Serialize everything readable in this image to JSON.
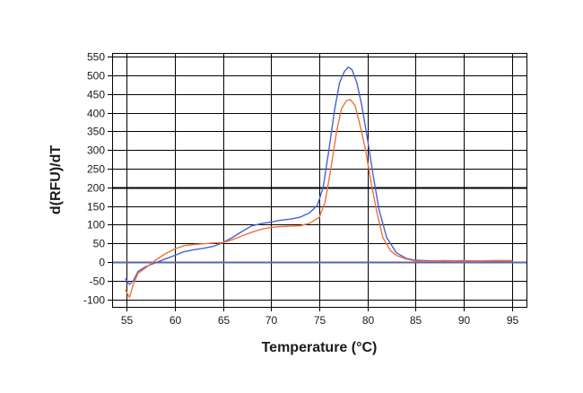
{
  "chart_data": {
    "type": "line",
    "xlabel": "Temperature (°C)",
    "ylabel": "d(RFU)/dT",
    "xlim": [
      53.5,
      96.5
    ],
    "ylim": [
      -120,
      560
    ],
    "x_ticks": [
      55,
      60,
      65,
      70,
      75,
      80,
      85,
      90,
      95
    ],
    "y_ticks": [
      -100,
      -50,
      0,
      50,
      100,
      150,
      200,
      250,
      300,
      350,
      400,
      450,
      500,
      550
    ],
    "highlight_y": [
      0,
      200
    ],
    "grid": true,
    "colors": {
      "blue": "#4a5fd0",
      "orange": "#f0703a",
      "baseline": "#5a64b0"
    },
    "baseline_y": 0,
    "series": [
      {
        "color": "#4a5fd0",
        "x": [
          54.9,
          55.3,
          55.7,
          56.2,
          57,
          58,
          59,
          60,
          61,
          62,
          63,
          64,
          65,
          66,
          67,
          68,
          69,
          70,
          71,
          72,
          73,
          74,
          74.8,
          75.4,
          76,
          76.6,
          77.1,
          77.6,
          78,
          78.4,
          78.9,
          79.4,
          80,
          80.6,
          81.2,
          82,
          83,
          84,
          85,
          86,
          87,
          88,
          89,
          90,
          91,
          92,
          93,
          94,
          95
        ],
        "y": [
          -45,
          -60,
          -50,
          -25,
          -12,
          -2,
          8,
          18,
          28,
          33,
          37,
          42,
          52,
          66,
          82,
          97,
          103,
          107,
          112,
          115,
          120,
          132,
          152,
          200,
          300,
          410,
          480,
          510,
          522,
          515,
          480,
          420,
          330,
          230,
          140,
          65,
          25,
          10,
          5,
          4,
          3,
          4,
          3,
          4,
          3,
          3,
          4,
          4,
          4
        ]
      },
      {
        "color": "#f0703a",
        "x": [
          54.9,
          55.3,
          55.7,
          56.2,
          57,
          58,
          59,
          60,
          61,
          62,
          63,
          64,
          65,
          66,
          67,
          68,
          69,
          70,
          71,
          72,
          73,
          74,
          75,
          75.6,
          76.2,
          76.8,
          77.3,
          77.8,
          78.2,
          78.7,
          79.2,
          79.8,
          80.4,
          81,
          81.6,
          82.4,
          83,
          84,
          85,
          86,
          87,
          88,
          89,
          90,
          91,
          92,
          93,
          94,
          95
        ],
        "y": [
          -75,
          -95,
          -60,
          -30,
          -15,
          5,
          22,
          35,
          44,
          47,
          49,
          51,
          52,
          60,
          70,
          80,
          88,
          93,
          95,
          96,
          97,
          104,
          120,
          160,
          250,
          350,
          410,
          432,
          435,
          420,
          370,
          300,
          210,
          130,
          65,
          30,
          18,
          8,
          3,
          2,
          2,
          3,
          2,
          3,
          2,
          2,
          3,
          3,
          3
        ]
      }
    ]
  }
}
